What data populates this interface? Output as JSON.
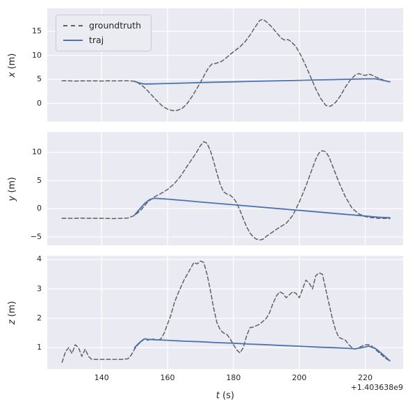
{
  "figure": {
    "offset_text": "+1.403638e9",
    "xlabel": {
      "var": "t",
      "unit": " (s)"
    },
    "background": "#ffffff",
    "axes_background": "#eaeaf2",
    "grid_color": "#ffffff",
    "text_color": "#262626"
  },
  "legend": {
    "entries": [
      {
        "label": "groundtruth",
        "color": "#606060",
        "dash": true
      },
      {
        "label": "traj",
        "color": "#4c72b0",
        "dash": false
      }
    ]
  },
  "chart_data": [
    {
      "type": "line",
      "ylabel": {
        "var": "x",
        "unit": " (m)"
      },
      "xlim": [
        123.5,
        231.5
      ],
      "ylim": [
        -3.8,
        19.8
      ],
      "xticks": [
        140,
        160,
        180,
        200,
        220
      ],
      "yticks": [
        0,
        5,
        10,
        15
      ],
      "show_xtick_labels": false,
      "grid": true,
      "series": [
        {
          "name": "groundtruth",
          "color": "#606060",
          "dash": true,
          "x": [
            128,
            130,
            132,
            134,
            136,
            138,
            140,
            142,
            144,
            146,
            148,
            149.5,
            151,
            152.5,
            154,
            155.5,
            157,
            158.5,
            160,
            161.5,
            163,
            164.5,
            166,
            167.5,
            169,
            170.5,
            171.5,
            172.5,
            173.5,
            174.5,
            175.5,
            176.5,
            177.5,
            179,
            180.5,
            182,
            183.5,
            185,
            186.5,
            188,
            189,
            190,
            191.5,
            193,
            194.5,
            195.5,
            196.5,
            197.5,
            199,
            200.5,
            202,
            203.5,
            205,
            206.5,
            208,
            209.5,
            211,
            212.5,
            214,
            215.5,
            217,
            218,
            219,
            220,
            221,
            222,
            223.5,
            225,
            226.5,
            227.5
          ],
          "y": [
            4.7,
            4.7,
            4.65,
            4.7,
            4.68,
            4.7,
            4.66,
            4.7,
            4.68,
            4.7,
            4.7,
            4.65,
            4.3,
            3.6,
            2.6,
            1.5,
            0.4,
            -0.6,
            -1.2,
            -1.5,
            -1.45,
            -1.0,
            0.0,
            1.5,
            3.2,
            5.0,
            6.3,
            7.5,
            8.2,
            8.3,
            8.5,
            8.8,
            9.3,
            10.2,
            11.0,
            11.8,
            12.8,
            14.2,
            15.8,
            17.3,
            17.5,
            17.0,
            16.0,
            14.8,
            13.6,
            13.2,
            13.3,
            12.9,
            11.8,
            10.0,
            7.8,
            5.4,
            3.0,
            1.0,
            -0.4,
            -0.6,
            0.2,
            1.6,
            3.4,
            4.9,
            5.9,
            6.2,
            6.0,
            5.8,
            6.1,
            5.9,
            5.4,
            5.0,
            4.6,
            4.5
          ]
        },
        {
          "name": "traj",
          "color": "#4c72b0",
          "dash": false,
          "x": [
            150,
            151,
            152,
            153,
            155,
            158,
            162,
            166,
            170,
            175,
            180,
            185,
            190,
            195,
            200,
            205,
            210,
            214,
            218,
            221,
            223,
            224.5,
            226,
            227.5
          ],
          "y": [
            4.6,
            4.35,
            4.15,
            4.05,
            4.05,
            4.1,
            4.18,
            4.25,
            4.33,
            4.42,
            4.5,
            4.58,
            4.65,
            4.73,
            4.8,
            4.88,
            4.95,
            5.02,
            5.08,
            5.12,
            5.1,
            4.95,
            4.7,
            4.5
          ]
        }
      ]
    },
    {
      "type": "line",
      "ylabel": {
        "var": "y",
        "unit": " (m)"
      },
      "xlim": [
        123.5,
        231.5
      ],
      "ylim": [
        -6.5,
        13.6
      ],
      "xticks": [
        140,
        160,
        180,
        200,
        220
      ],
      "yticks": [
        -5,
        0,
        5,
        10
      ],
      "show_xtick_labels": false,
      "grid": true,
      "series": [
        {
          "name": "groundtruth",
          "color": "#606060",
          "dash": true,
          "x": [
            128,
            131,
            134,
            137,
            140,
            143,
            146,
            148,
            150,
            152,
            154,
            156,
            158,
            160,
            162,
            164,
            166,
            168,
            169,
            170,
            171,
            172,
            173,
            174,
            175,
            176,
            177,
            178,
            179,
            180,
            181,
            182,
            183,
            184,
            185,
            186,
            187,
            188,
            189,
            190,
            192,
            194,
            196,
            198,
            200,
            202,
            204,
            205,
            206,
            207,
            208,
            209,
            210,
            212,
            214,
            216,
            218,
            220,
            222,
            224,
            226,
            227.5
          ],
          "y": [
            -1.7,
            -1.72,
            -1.68,
            -1.72,
            -1.7,
            -1.75,
            -1.72,
            -1.65,
            -1.2,
            -0.2,
            1.2,
            2.1,
            2.7,
            3.4,
            4.4,
            5.8,
            7.6,
            9.3,
            10.2,
            11.2,
            11.9,
            11.6,
            10.3,
            8.4,
            6.3,
            4.3,
            3.0,
            2.6,
            2.4,
            1.9,
            1.0,
            -0.3,
            -1.8,
            -3.2,
            -4.3,
            -5.0,
            -5.4,
            -5.55,
            -5.4,
            -4.9,
            -4.1,
            -3.3,
            -2.6,
            -1.2,
            1.2,
            4.0,
            7.2,
            8.8,
            9.9,
            10.3,
            10.1,
            9.2,
            7.7,
            4.7,
            2.1,
            0.1,
            -0.9,
            -1.4,
            -1.6,
            -1.7,
            -1.72,
            -1.75
          ]
        },
        {
          "name": "traj",
          "color": "#4c72b0",
          "dash": false,
          "x": [
            150,
            151.5,
            153,
            154.5,
            156,
            160,
            165,
            170,
            175,
            180,
            185,
            190,
            195,
            200,
            205,
            210,
            215,
            220,
            224,
            227.5
          ],
          "y": [
            -1.1,
            -0.1,
            0.9,
            1.6,
            1.85,
            1.7,
            1.45,
            1.2,
            0.95,
            0.7,
            0.45,
            0.2,
            -0.05,
            -0.3,
            -0.55,
            -0.8,
            -1.05,
            -1.3,
            -1.5,
            -1.6
          ]
        }
      ]
    },
    {
      "type": "line",
      "ylabel": {
        "var": "z",
        "unit": " (m)"
      },
      "xlim": [
        123.5,
        231.5
      ],
      "ylim": [
        0.27,
        4.13
      ],
      "xticks": [
        140,
        160,
        180,
        200,
        220
      ],
      "yticks": [
        1,
        2,
        3,
        4
      ],
      "show_xtick_labels": true,
      "grid": true,
      "series": [
        {
          "name": "groundtruth",
          "color": "#606060",
          "dash": true,
          "x": [
            128,
            129,
            130,
            131,
            132,
            133,
            134,
            135,
            136,
            137,
            138,
            140,
            142,
            144,
            146,
            148,
            149,
            150,
            151,
            152,
            153,
            154,
            155,
            156,
            157,
            158,
            159,
            160,
            161,
            162,
            163,
            164,
            165,
            166,
            167,
            168,
            169,
            170,
            171,
            172,
            173,
            174,
            175,
            176,
            177,
            178,
            179,
            180,
            181,
            182,
            183,
            184,
            185,
            186,
            187,
            188,
            189,
            190,
            191,
            192,
            193,
            194,
            195,
            196,
            197,
            198,
            199,
            200,
            201,
            202,
            203,
            204,
            205,
            206,
            207,
            208,
            209,
            210,
            211,
            212,
            213,
            214,
            215,
            216,
            217,
            218,
            219,
            220,
            221,
            222,
            223,
            224,
            225,
            226,
            227.5
          ],
          "y": [
            0.5,
            0.85,
            1.0,
            0.8,
            1.1,
            1.0,
            0.7,
            0.95,
            0.7,
            0.6,
            0.6,
            0.6,
            0.6,
            0.6,
            0.6,
            0.62,
            0.75,
            0.95,
            1.1,
            1.2,
            1.3,
            1.25,
            1.3,
            1.28,
            1.25,
            1.3,
            1.5,
            1.8,
            2.1,
            2.5,
            2.8,
            3.05,
            3.3,
            3.5,
            3.7,
            3.9,
            3.85,
            3.95,
            3.9,
            3.5,
            2.95,
            2.35,
            1.85,
            1.6,
            1.5,
            1.45,
            1.3,
            1.1,
            0.92,
            0.82,
            1.0,
            1.4,
            1.68,
            1.7,
            1.75,
            1.8,
            1.9,
            2.0,
            2.2,
            2.5,
            2.75,
            2.9,
            2.85,
            2.7,
            2.8,
            2.9,
            2.85,
            2.7,
            3.0,
            3.3,
            3.2,
            3.0,
            3.45,
            3.55,
            3.5,
            3.0,
            2.5,
            2.0,
            1.6,
            1.35,
            1.3,
            1.25,
            1.1,
            1.0,
            0.95,
            1.0,
            1.05,
            1.1,
            1.1,
            1.05,
            0.95,
            0.85,
            0.75,
            0.65,
            0.55
          ]
        },
        {
          "name": "traj",
          "color": "#4c72b0",
          "dash": false,
          "x": [
            150,
            151,
            152,
            153,
            154,
            156,
            160,
            165,
            170,
            175,
            180,
            185,
            190,
            195,
            200,
            205,
            210,
            214,
            217,
            219,
            221,
            223,
            225,
            226.5,
            227.5
          ],
          "y": [
            1.0,
            1.12,
            1.22,
            1.3,
            1.28,
            1.27,
            1.25,
            1.22,
            1.2,
            1.17,
            1.15,
            1.12,
            1.1,
            1.07,
            1.05,
            1.02,
            1.0,
            0.98,
            0.96,
            1.0,
            1.05,
            0.98,
            0.8,
            0.65,
            0.55
          ]
        }
      ]
    }
  ]
}
